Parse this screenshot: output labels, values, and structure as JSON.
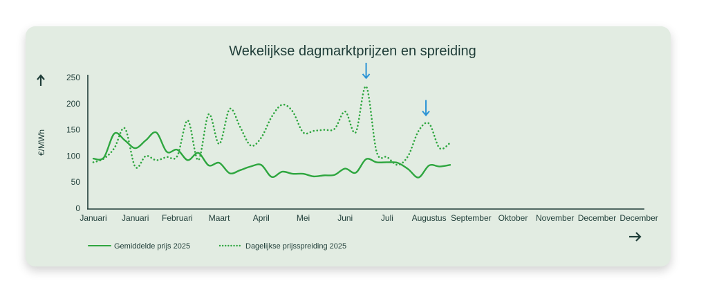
{
  "chart_data": {
    "type": "line",
    "title": "Wekelijkse dagmarktprijzen en spreiding",
    "ylabel": "€/MWh",
    "xlabel": "",
    "ylim": [
      0,
      250
    ],
    "yticks": [
      0,
      50,
      100,
      150,
      200,
      250
    ],
    "xtick_labels": [
      "Januari",
      "Januari",
      "Februari",
      "Maart",
      "April",
      "Mei",
      "Juni",
      "Juli",
      "Augustus",
      "September",
      "Oktober",
      "November",
      "December",
      "December"
    ],
    "grid": false,
    "legend_position": "bottom-left",
    "series": [
      {
        "name": "Gemiddelde prijs 2025",
        "style": "solid",
        "color": "#2ea63f",
        "values": [
          95,
          97,
          143,
          130,
          115,
          130,
          145,
          108,
          112,
          92,
          106,
          82,
          87,
          67,
          73,
          80,
          83,
          60,
          70,
          66,
          66,
          61,
          63,
          64,
          76,
          68,
          94,
          88,
          88,
          87,
          75,
          59,
          82,
          80,
          83
        ]
      },
      {
        "name": "Dagelijkse prijsspreiding 2025",
        "style": "dotted",
        "color": "#2ea63f",
        "values": [
          88,
          95,
          115,
          153,
          79,
          100,
          92,
          98,
          100,
          168,
          92,
          180,
          123,
          190,
          155,
          120,
          135,
          175,
          198,
          185,
          145,
          148,
          150,
          152,
          185,
          145,
          233,
          108,
          98,
          83,
          100,
          148,
          162,
          115,
          125
        ]
      }
    ],
    "annotations": [
      {
        "type": "arrow-down",
        "color": "#2a93d5",
        "week_index": 26
      },
      {
        "type": "arrow-down",
        "color": "#2a93d5",
        "week_index": 31.7
      }
    ]
  },
  "colors": {
    "background": "#e2ece2",
    "text": "#1f3d38",
    "accent_arrow": "#2a93d5",
    "line": "#2ea63f"
  },
  "icons": {
    "y_axis_arrow": "arrow-up-icon",
    "x_axis_arrow": "arrow-right-icon"
  }
}
